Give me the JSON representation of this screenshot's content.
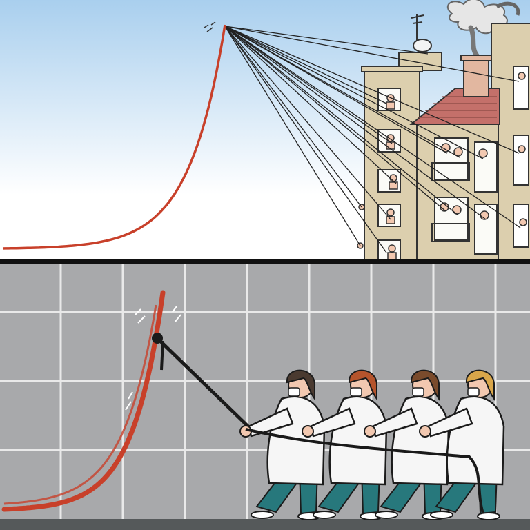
{
  "image": {
    "panels": [
      {
        "name": "top-panel",
        "elements": [
          "exponential-curve",
          "ropes",
          "apartment-building",
          "house-with-tiled-roof",
          "residents-on-balconies",
          "smoking-chimney",
          "tv-antenna",
          "satellite-dish"
        ]
      },
      {
        "name": "bottom-panel",
        "elements": [
          "grid-chart",
          "exponential-curve",
          "knot",
          "rope",
          "health-workers-in-white-coats",
          "face-masks",
          "floor"
        ]
      }
    ]
  },
  "colors": {
    "sky_top": "#a9cfee",
    "sky_bottom": "#ffffff",
    "curve": "#c8402a",
    "rope": "#222222",
    "building": "#dccfae",
    "roof": "#c4706a",
    "smoke": "#7d7d7d",
    "grid_bg": "#a8a9ab",
    "grid_line": "#e9e9e9",
    "coat": "#f6f6f6",
    "trousers": "#27787c",
    "skin": "#f2c8b0",
    "hair_dark": "#4a3a30",
    "hair_red": "#b5542c",
    "hair_brown": "#7a4b2c",
    "hair_blond": "#d9a64a",
    "floor": "#55595a",
    "divider": "#111111"
  }
}
